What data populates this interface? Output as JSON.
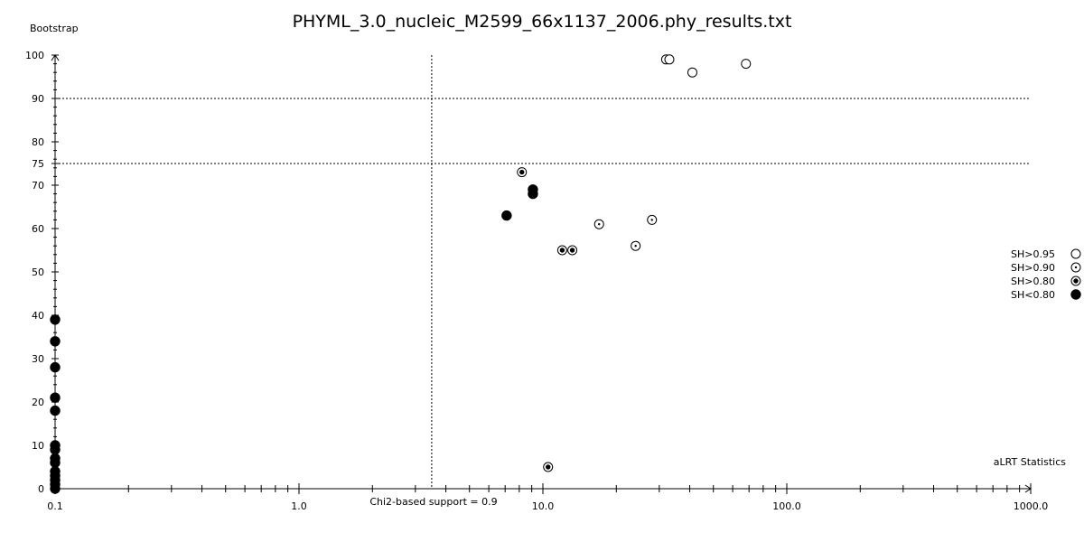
{
  "chart_data": {
    "type": "scatter",
    "title": "PHYML_3.0_nucleic_M2599_66x1137_2006.phy_results.txt",
    "xlabel": "aLRT Statistics",
    "ylabel": "Bootstrap",
    "xscale": "log",
    "xlim": [
      0.1,
      1000.0
    ],
    "ylim": [
      0,
      100
    ],
    "x_ticks": [
      "0.1",
      "1.0",
      "10.0",
      "100.0",
      "1000.0"
    ],
    "y_ticks": [
      "0",
      "10",
      "20",
      "30",
      "40",
      "50",
      "60",
      "70",
      "75",
      "80",
      "90",
      "100"
    ],
    "reference_lines": {
      "vertical_x": 3.5,
      "vertical_label": "Chi2-based support = 0.9",
      "horizontal_y": [
        90,
        75
      ]
    },
    "grid": false,
    "legend_position": "right",
    "legend": [
      {
        "key": "gt95",
        "label": "SH>0.95",
        "style": "open"
      },
      {
        "key": "gt90",
        "label": "SH>0.90",
        "style": "dot"
      },
      {
        "key": "gt80",
        "label": "SH>0.80",
        "style": "ring"
      },
      {
        "key": "lt80",
        "label": "SH<0.80",
        "style": "filled"
      }
    ],
    "series": [
      {
        "name": "SH>0.95",
        "key": "gt95",
        "points": [
          [
            32,
            99
          ],
          [
            33,
            99
          ],
          [
            41,
            96
          ],
          [
            68,
            98
          ]
        ]
      },
      {
        "name": "SH>0.90",
        "key": "gt90",
        "points": [
          [
            17,
            61
          ],
          [
            28,
            62
          ],
          [
            24,
            56
          ]
        ]
      },
      {
        "name": "SH>0.80",
        "key": "gt80",
        "points": [
          [
            8.2,
            73
          ],
          [
            12,
            55
          ],
          [
            13.2,
            55
          ],
          [
            10.5,
            5
          ]
        ]
      },
      {
        "name": "SH<0.80",
        "key": "lt80",
        "points": [
          [
            7.1,
            63
          ],
          [
            9.1,
            69
          ],
          [
            9.1,
            68
          ],
          [
            0.1,
            39
          ],
          [
            0.1,
            34
          ],
          [
            0.1,
            28
          ],
          [
            0.1,
            21
          ],
          [
            0.1,
            18
          ],
          [
            0.1,
            10
          ],
          [
            0.1,
            9
          ],
          [
            0.1,
            7
          ],
          [
            0.1,
            6
          ],
          [
            0.1,
            4
          ],
          [
            0.1,
            3
          ],
          [
            0.1,
            2
          ],
          [
            0.1,
            1
          ],
          [
            0.1,
            0
          ]
        ]
      }
    ]
  }
}
